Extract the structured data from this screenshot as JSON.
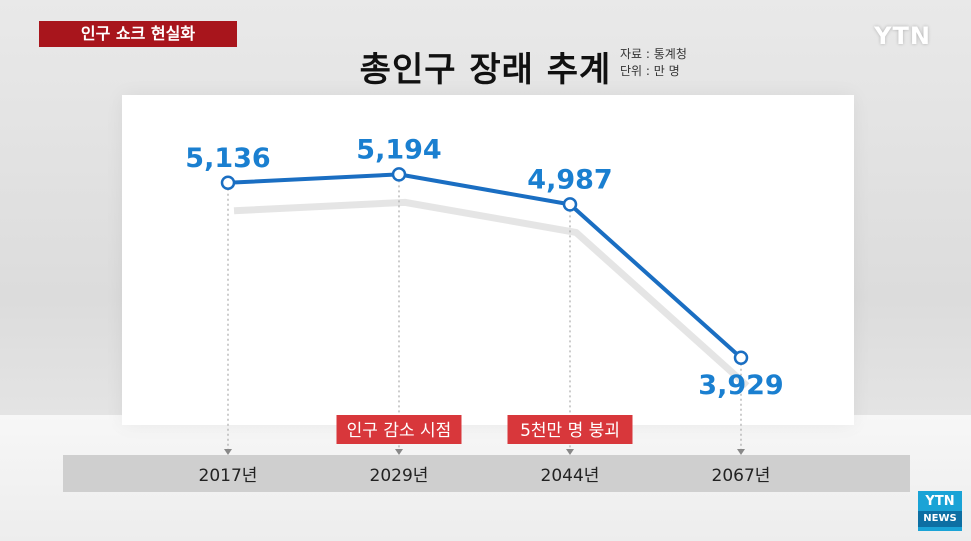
{
  "header": {
    "tag": "인구 쇼크 현실화",
    "brand": "YTN"
  },
  "title": "총인구 장래 추계",
  "source_lines": [
    "자료 : 통계청",
    "단위 : 만 명"
  ],
  "chart_data": {
    "type": "line",
    "x": [
      "2017년",
      "2029년",
      "2044년",
      "2067년"
    ],
    "values": [
      5136,
      5194,
      4987,
      3929
    ],
    "data_labels": [
      "5,136",
      "5,194",
      "4,987",
      "3,929"
    ],
    "ylim": [
      3500,
      5500
    ],
    "grid": false,
    "annotations": [
      {
        "x": "2029년",
        "text": "인구 감소 시점"
      },
      {
        "x": "2044년",
        "text": "5천만 명 붕괴"
      }
    ],
    "colors": {
      "line": "#1a6ec2",
      "label": "#1a7fd0",
      "annotation": "#d8373b"
    }
  },
  "news_logo": {
    "top": "YTN",
    "bottom": "NEWS"
  }
}
